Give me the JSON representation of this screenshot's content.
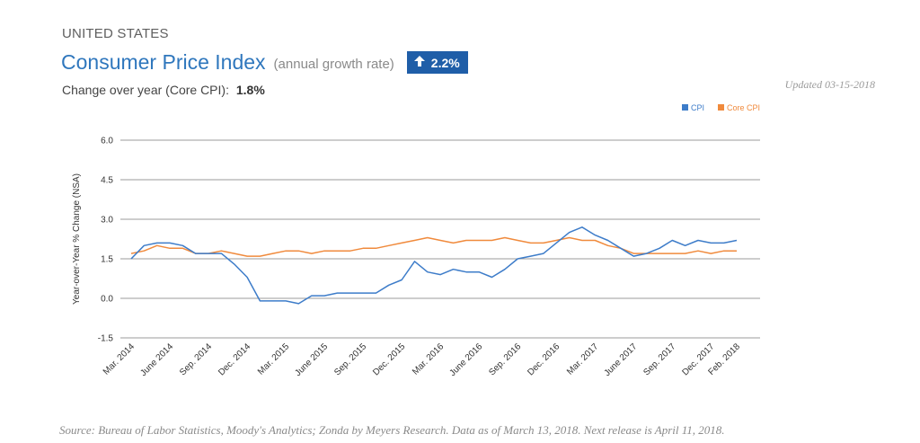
{
  "header": {
    "country": "UNITED STATES",
    "title": "Consumer Price Index",
    "subtitle": "(annual growth rate)",
    "badge_value": "2.2%",
    "change_label": "Change over year (Core CPI):",
    "change_value": "1.8%",
    "updated": "Updated 03-15-2018"
  },
  "footer": {
    "source": "Source: Bureau of Labor Statistics, Moody's Analytics; Zonda by Meyers Research. Data as of March 13, 2018. Next release is April 11, 2018."
  },
  "colors": {
    "cpi": "#3d7cc9",
    "core": "#f08a3c",
    "grid": "#9b9b9b",
    "title": "#2f77bd",
    "badge": "#1f5ea8"
  },
  "chart_data": {
    "type": "line",
    "ylabel": "Year-over-Year % Change (NSA)",
    "xlabel": "",
    "ylim": [
      -1.5,
      6.0
    ],
    "yticks": [
      "6.0",
      "4.5",
      "3.0",
      "1.5",
      "0.0",
      "-1.5"
    ],
    "ytick_values": [
      6.0,
      4.5,
      3.0,
      1.5,
      0.0,
      -1.5
    ],
    "grid": true,
    "legend_position": "top-right",
    "x_tick_labels": [
      {
        "label": "Mar. 2014",
        "index": 0
      },
      {
        "label": "June 2014",
        "index": 3
      },
      {
        "label": "Sep. 2014",
        "index": 6
      },
      {
        "label": "Dec. 2014",
        "index": 9
      },
      {
        "label": "Mar. 2015",
        "index": 12
      },
      {
        "label": "June 2015",
        "index": 15
      },
      {
        "label": "Sep. 2015",
        "index": 18
      },
      {
        "label": "Dec. 2015",
        "index": 21
      },
      {
        "label": "Mar. 2016",
        "index": 24
      },
      {
        "label": "June 2016",
        "index": 27
      },
      {
        "label": "Sep. 2016",
        "index": 30
      },
      {
        "label": "Dec. 2016",
        "index": 33
      },
      {
        "label": "Mar. 2017",
        "index": 36
      },
      {
        "label": "June 2017",
        "index": 39
      },
      {
        "label": "Sep. 2017",
        "index": 42
      },
      {
        "label": "Dec. 2017",
        "index": 45
      },
      {
        "label": "Feb. 2018",
        "index": 47
      }
    ],
    "series": [
      {
        "name": "CPI",
        "values": [
          1.5,
          2.0,
          2.1,
          2.1,
          2.0,
          1.7,
          1.7,
          1.7,
          1.3,
          0.8,
          -0.1,
          -0.1,
          -0.1,
          -0.2,
          0.1,
          0.1,
          0.2,
          0.2,
          0.2,
          0.2,
          0.5,
          0.7,
          1.4,
          1.0,
          0.9,
          1.1,
          1.0,
          1.0,
          0.8,
          1.1,
          1.5,
          1.6,
          1.7,
          2.1,
          2.5,
          2.7,
          2.4,
          2.2,
          1.9,
          1.6,
          1.7,
          1.9,
          2.2,
          2.0,
          2.2,
          2.1,
          2.1,
          2.2
        ]
      },
      {
        "name": "Core CPI",
        "values": [
          1.7,
          1.8,
          2.0,
          1.9,
          1.9,
          1.7,
          1.7,
          1.8,
          1.7,
          1.6,
          1.6,
          1.7,
          1.8,
          1.8,
          1.7,
          1.8,
          1.8,
          1.8,
          1.9,
          1.9,
          2.0,
          2.1,
          2.2,
          2.3,
          2.2,
          2.1,
          2.2,
          2.2,
          2.2,
          2.3,
          2.2,
          2.1,
          2.1,
          2.2,
          2.3,
          2.2,
          2.2,
          2.0,
          1.9,
          1.7,
          1.7,
          1.7,
          1.7,
          1.7,
          1.8,
          1.7,
          1.8,
          1.8
        ]
      }
    ]
  }
}
